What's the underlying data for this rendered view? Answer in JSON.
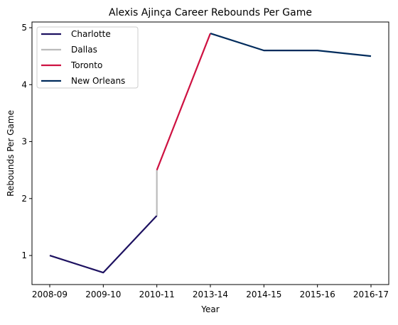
{
  "chart_data": {
    "type": "line",
    "title": "Alexis Ajinça Career Rebounds Per Game",
    "xlabel": "Year",
    "ylabel": "Rebounds Per Game",
    "categories": [
      "2008-09",
      "2009-10",
      "2010-11",
      "2013-14",
      "2014-15",
      "2015-16",
      "2016-17"
    ],
    "y_ticks": [
      1,
      2,
      3,
      4,
      5
    ],
    "ylim": [
      0.49,
      5.1
    ],
    "grid": false,
    "legend_position": "top-left",
    "series": [
      {
        "name": "Charlotte",
        "color": "#1d1160",
        "points": [
          [
            0,
            1.0
          ],
          [
            1,
            0.7
          ],
          [
            2,
            1.7
          ]
        ]
      },
      {
        "name": "Dallas",
        "color": "#bbbbbb",
        "points": [
          [
            2,
            1.7
          ],
          [
            2,
            2.5
          ]
        ]
      },
      {
        "name": "Toronto",
        "color": "#ce1141",
        "points": [
          [
            2,
            2.5
          ],
          [
            3,
            4.9
          ]
        ]
      },
      {
        "name": "New Orleans",
        "color": "#002b5c",
        "points": [
          [
            3,
            4.9
          ],
          [
            4,
            4.6
          ],
          [
            5,
            4.6
          ],
          [
            6,
            4.5
          ]
        ]
      }
    ]
  }
}
